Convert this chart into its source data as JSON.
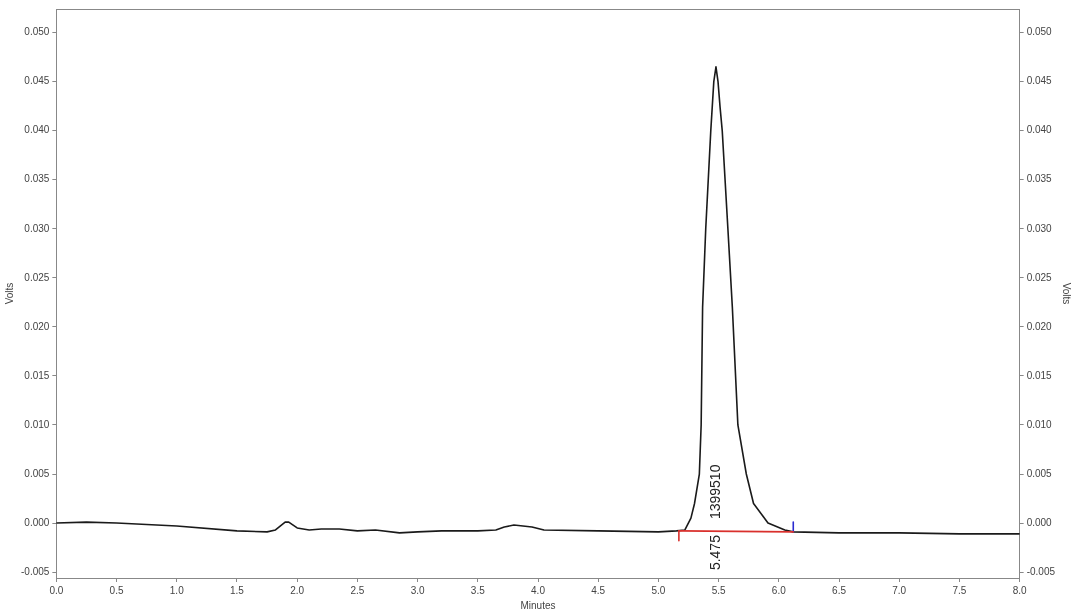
{
  "chart_data": {
    "type": "line",
    "xlabel": "Minutes",
    "ylabel": "Volts",
    "y2label": "Volts",
    "legend": false,
    "grid": false,
    "marker": "none",
    "line_style": "solid",
    "xlim": [
      0,
      8
    ],
    "xticks": [
      {
        "value": 0,
        "label": "0.0"
      },
      {
        "value": 0.5,
        "label": "0.5"
      },
      {
        "value": 1,
        "label": "1.0"
      },
      {
        "value": 1.5,
        "label": "1.5"
      },
      {
        "value": 2,
        "label": "2.0"
      },
      {
        "value": 2.5,
        "label": "2.5"
      },
      {
        "value": 3,
        "label": "3.0"
      },
      {
        "value": 3.5,
        "label": "3.5"
      },
      {
        "value": 4,
        "label": "4.0"
      },
      {
        "value": 4.5,
        "label": "4.5"
      },
      {
        "value": 5,
        "label": "5.0"
      },
      {
        "value": 5.5,
        "label": "5.5"
      },
      {
        "value": 6,
        "label": "6.0"
      },
      {
        "value": 6.5,
        "label": "6.5"
      },
      {
        "value": 7,
        "label": "7.0"
      },
      {
        "value": 7.5,
        "label": "7.5"
      },
      {
        "value": 8,
        "label": "8.0"
      }
    ],
    "ylim": [
      -0.0056,
      0.0524
    ],
    "yticks": [
      {
        "value": -0.005,
        "label": "-0.005"
      },
      {
        "value": 0,
        "label": "0.000"
      },
      {
        "value": 0.005,
        "label": "0.005"
      },
      {
        "value": 0.01,
        "label": "0.010"
      },
      {
        "value": 0.015,
        "label": "0.015"
      },
      {
        "value": 0.02,
        "label": "0.020"
      },
      {
        "value": 0.025,
        "label": "0.025"
      },
      {
        "value": 0.03,
        "label": "0.030"
      },
      {
        "value": 0.035,
        "label": "0.035"
      },
      {
        "value": 0.04,
        "label": "0.040"
      },
      {
        "value": 0.045,
        "label": "0.045"
      },
      {
        "value": 0.05,
        "label": "0.050"
      }
    ],
    "y2lim": [
      -0.0056,
      0.0524
    ],
    "y2ticks": [
      {
        "value": -0.005,
        "label": "-0.005"
      },
      {
        "value": 0,
        "label": "0.000"
      },
      {
        "value": 0.005,
        "label": "0.005"
      },
      {
        "value": 0.01,
        "label": "0.010"
      },
      {
        "value": 0.015,
        "label": "0.015"
      },
      {
        "value": 0.02,
        "label": "0.020"
      },
      {
        "value": 0.025,
        "label": "0.025"
      },
      {
        "value": 0.03,
        "label": "0.030"
      },
      {
        "value": 0.035,
        "label": "0.035"
      },
      {
        "value": 0.04,
        "label": "0.040"
      },
      {
        "value": 0.045,
        "label": "0.045"
      },
      {
        "value": 0.05,
        "label": "0.050"
      }
    ],
    "series": [
      {
        "color": "#d9302c",
        "x": [
          5.17,
          6.12
        ],
        "values": [
          -0.0008,
          -0.0009
        ]
      },
      {
        "color": "#d9302c",
        "x": [
          5.17,
          5.17
        ],
        "values": [
          -0.0008,
          -0.0018
        ]
      },
      {
        "color": "#2b2bd0",
        "x": [
          6.12,
          6.12
        ],
        "values": [
          -0.0009,
          0.0001
        ]
      },
      {
        "color": "#1a1a1a",
        "x": [
          0,
          0.25,
          0.5,
          1.0,
          1.5,
          1.75,
          1.82,
          1.9,
          1.93,
          2.0,
          2.1,
          2.2,
          2.35,
          2.5,
          2.65,
          2.85,
          3.0,
          3.2,
          3.5,
          3.65,
          3.72,
          3.8,
          3.95,
          4.05,
          4.5,
          5.0,
          5.15,
          5.22,
          5.27,
          5.3,
          5.34,
          5.355,
          5.367,
          5.393,
          5.435,
          5.46,
          5.478,
          5.495,
          5.512,
          5.53,
          5.577,
          5.614,
          5.66,
          5.73,
          5.79,
          5.91,
          6.05,
          6.12,
          6.5,
          7.0,
          7.5,
          8.0
        ],
        "values": [
          0,
          0.0001,
          0,
          -0.0003,
          -0.0008,
          -0.0009,
          -0.0007,
          0.0001,
          0.0001,
          -0.0005,
          -0.0007,
          -0.0006,
          -0.0006,
          -0.0008,
          -0.0007,
          -0.001,
          -0.0009,
          -0.0008,
          -0.0008,
          -0.0007,
          -0.0004,
          -0.0002,
          -0.0004,
          -0.0007,
          -0.0008,
          -0.0009,
          -0.0008,
          -0.0007,
          0.0005,
          0.002,
          0.005,
          0.01,
          0.022,
          0.03,
          0.04,
          0.045,
          0.0465,
          0.045,
          0.0424,
          0.04,
          0.03,
          0.022,
          0.01,
          0.005,
          0.002,
          0,
          -0.0007,
          -0.0009,
          -0.001,
          -0.001,
          -0.0011,
          -0.0011
        ]
      }
    ],
    "annotations": [
      "1399510",
      "5.475"
    ]
  }
}
